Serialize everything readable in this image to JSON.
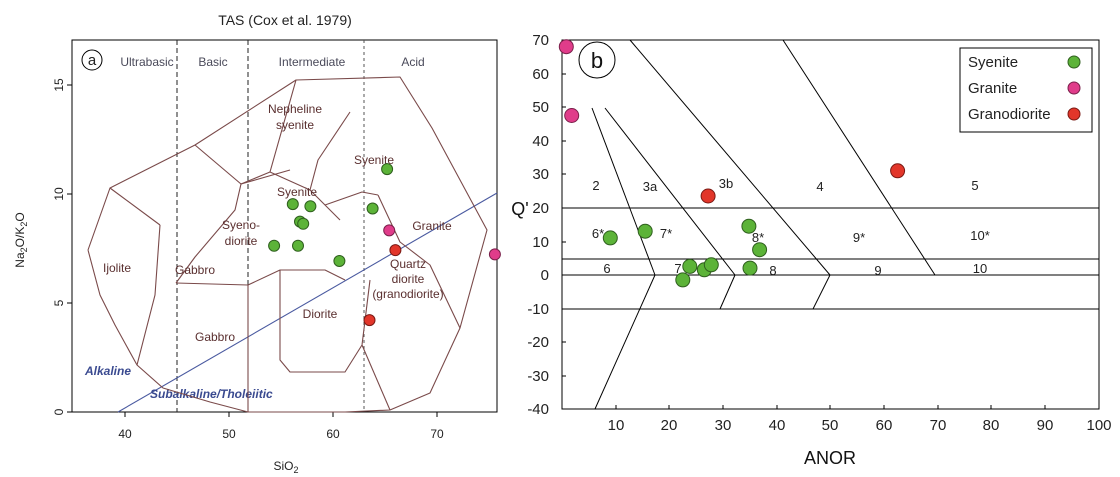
{
  "chart_data": [
    {
      "type": "scatter",
      "panel_label": "a",
      "title": "TAS (Cox et al. 1979)",
      "xlabel": "SiO2",
      "ylabel": "Na2O/K2O",
      "xlim": [
        35,
        76
      ],
      "ylim": [
        0,
        17
      ],
      "xticks": [
        40,
        50,
        60,
        70
      ],
      "yticks": [
        0,
        5,
        10,
        15
      ],
      "divisions": [
        "Ultrabasic",
        "Basic",
        "Intermediate",
        "Acid"
      ],
      "field_labels": [
        "Nepheline syenite",
        "Syenite",
        "Syenite",
        "Syeno-diorite",
        "Ijolite",
        "Gabbro",
        "Gabbro",
        "Diorite",
        "Granite",
        "Quartz diorite (granodiorite)"
      ],
      "series_labels": [
        "Alkaline",
        "Subalkaline/Tholeiitic"
      ],
      "series": [
        {
          "name": "Syenite",
          "color": "#5cb338",
          "points": [
            [
              56.3,
              9.5
            ],
            [
              57.0,
              8.7
            ],
            [
              57.3,
              8.6
            ],
            [
              58.0,
              9.4
            ],
            [
              54.5,
              7.6
            ],
            [
              56.8,
              7.6
            ],
            [
              60.8,
              6.9
            ],
            [
              64.0,
              9.3
            ],
            [
              65.4,
              11.1
            ]
          ]
        },
        {
          "name": "Granite",
          "color": "#e03c8a",
          "points": [
            [
              65.6,
              8.3
            ],
            [
              75.8,
              7.2
            ]
          ]
        },
        {
          "name": "Granodiorite",
          "color": "#e2362a",
          "points": [
            [
              66.2,
              7.4
            ],
            [
              63.7,
              4.2
            ]
          ]
        }
      ]
    },
    {
      "type": "scatter",
      "panel_label": "b",
      "xlabel": "ANOR",
      "ylabel": "Q'",
      "xlim": [
        0,
        100
      ],
      "ylim": [
        -40,
        70
      ],
      "xticks": [
        10,
        20,
        30,
        40,
        50,
        60,
        70,
        80,
        90,
        100
      ],
      "yticks": [
        70,
        60,
        50,
        40,
        30,
        20,
        10,
        0,
        -10,
        -20,
        -30,
        -40
      ],
      "field_labels": [
        "2",
        "3a",
        "3b",
        "4",
        "5",
        "6*",
        "7*",
        "8*",
        "9*",
        "10*",
        "6",
        "7",
        "8",
        "9",
        "10"
      ],
      "legend_position": "top-right",
      "series": [
        {
          "name": "Syenite",
          "color": "#5cb338",
          "points": [
            [
              9,
              11
            ],
            [
              15.5,
              13
            ],
            [
              34.8,
              14.5
            ],
            [
              36.8,
              7.5
            ],
            [
              22.5,
              -1.5
            ],
            [
              23.8,
              2.5
            ],
            [
              26.5,
              1.5
            ],
            [
              27.8,
              3
            ],
            [
              35,
              2
            ]
          ]
        },
        {
          "name": "Granite",
          "color": "#e03c8a",
          "points": [
            [
              0.8,
              68
            ],
            [
              1.8,
              47.5
            ]
          ]
        },
        {
          "name": "Granodiorite",
          "color": "#e2362a",
          "points": [
            [
              27.2,
              23.5
            ],
            [
              62.5,
              31
            ]
          ]
        }
      ]
    }
  ],
  "legend": {
    "entries": [
      {
        "label": "Syenite",
        "color": "#5cb338"
      },
      {
        "label": "Granite",
        "color": "#e03c8a"
      },
      {
        "label": "Granodiorite",
        "color": "#e2362a"
      }
    ]
  }
}
